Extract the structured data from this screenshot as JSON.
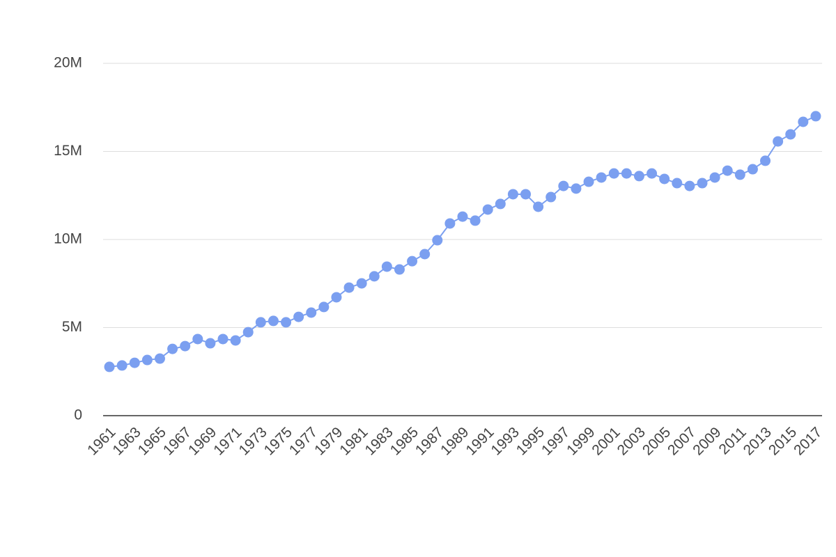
{
  "chart_data": {
    "type": "line",
    "color": "#7b9ff0",
    "grid": true,
    "categories": [
      "1961",
      null,
      "1963",
      null,
      "1965",
      null,
      "1967",
      null,
      "1969",
      null,
      "1971",
      null,
      "1973",
      null,
      "1975",
      null,
      "1977",
      null,
      "1979",
      null,
      "1981",
      null,
      "1983",
      null,
      "1985",
      null,
      "1987",
      null,
      "1989",
      null,
      "1991",
      null,
      "1993",
      null,
      "1995",
      null,
      "1997",
      null,
      "1999",
      null,
      "2001",
      null,
      "2003",
      null,
      "2005",
      null,
      "2007",
      null,
      "2009",
      null,
      "2011",
      null,
      "2013",
      null,
      "2015",
      null,
      "2017"
    ],
    "values": [
      2770000,
      2850000,
      3000000,
      3160000,
      3240000,
      3790000,
      3950000,
      4350000,
      4110000,
      4350000,
      4270000,
      4740000,
      5300000,
      5380000,
      5300000,
      5610000,
      5850000,
      6170000,
      6720000,
      7270000,
      7510000,
      7910000,
      8460000,
      8300000,
      8770000,
      9170000,
      9960000,
      10910000,
      11300000,
      11070000,
      11700000,
      12020000,
      12570000,
      12570000,
      11860000,
      12410000,
      13040000,
      12890000,
      13280000,
      13520000,
      13750000,
      13750000,
      13600000,
      13750000,
      13440000,
      13200000,
      13040000,
      13200000,
      13520000,
      13910000,
      13680000,
      13990000,
      14470000,
      15570000,
      15970000,
      16680000,
      17000000
    ],
    "ylim": [
      0,
      20000000
    ],
    "yticks": [
      0,
      {
        "value": 5000000,
        "label": "5M"
      },
      {
        "value": 10000000,
        "label": "10M"
      },
      {
        "value": 15000000,
        "label": "15M"
      },
      {
        "value": 20000000,
        "label": "20M"
      }
    ]
  }
}
